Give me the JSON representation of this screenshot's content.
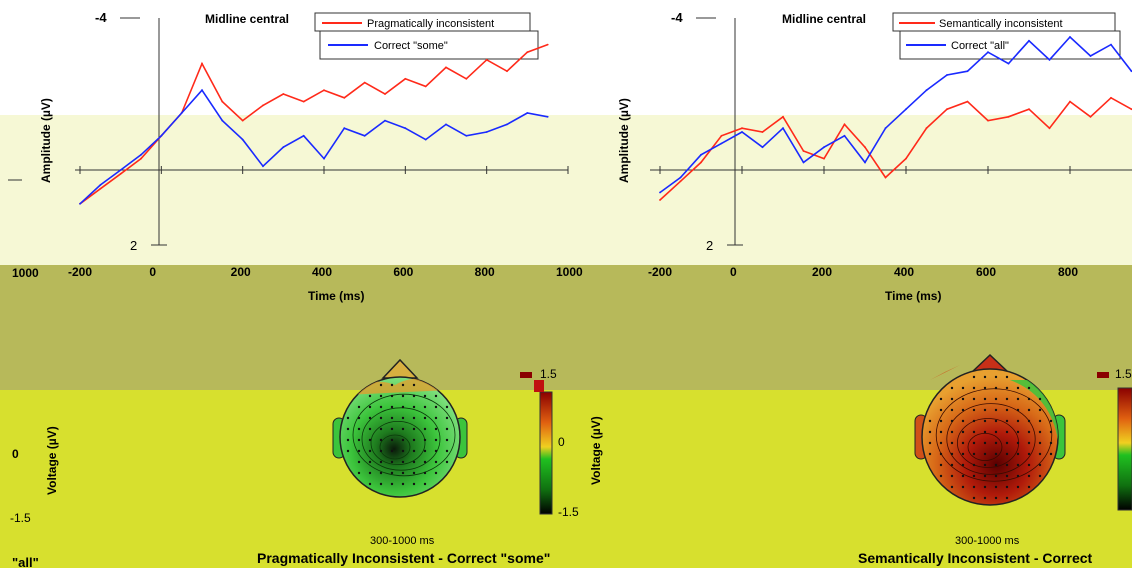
{
  "colors": {
    "red_series": "#ff2a1a",
    "blue_series": "#1a2aff",
    "band_light": "#f3f7d8",
    "band_cream": "#fbf8c8",
    "band_olive": "#b7b95a",
    "band_yellow": "#d7e02e",
    "axis": "#333333"
  },
  "erp_panels": [
    {
      "title": "Midline central",
      "ylabel": "Amplitude (µV)",
      "xlabel": "Time (ms)",
      "y_top_tick": "-4",
      "y_bottom_tick": "2",
      "x_ticks": [
        "-200",
        "0",
        "200",
        "400",
        "600",
        "800",
        "1000"
      ],
      "legend": [
        "Pragmatically inconsistent",
        "Correct \"some\""
      ]
    },
    {
      "title": "Midline central",
      "ylabel": "Amplitude (µV)",
      "xlabel": "Time (ms)",
      "y_top_tick": "-4",
      "y_bottom_tick": "2",
      "x_ticks": [
        "-200",
        "0",
        "200",
        "400",
        "600",
        "800"
      ],
      "legend": [
        "Semantically inconsistent",
        "Correct \"all\""
      ]
    }
  ],
  "chart_data": [
    {
      "type": "line",
      "title": "Midline central",
      "xlabel": "Time (ms)",
      "ylabel": "Amplitude (µV)",
      "xlim": [
        -200,
        1000
      ],
      "ylim": [
        2,
        -4
      ],
      "grid": false,
      "legend_position": "top-right",
      "series": [
        {
          "name": "Pragmatically inconsistent",
          "color": "#ff2a1a",
          "x": [
            -200,
            -150,
            -100,
            -50,
            0,
            50,
            100,
            150,
            200,
            250,
            300,
            350,
            400,
            450,
            500,
            550,
            600,
            650,
            700,
            750,
            800,
            850,
            900,
            950
          ],
          "y": [
            0.9,
            0.5,
            0.1,
            -0.3,
            -0.9,
            -1.5,
            -2.8,
            -1.8,
            -1.3,
            -1.7,
            -2.0,
            -1.8,
            -2.1,
            -1.9,
            -2.3,
            -2.0,
            -2.4,
            -2.2,
            -2.7,
            -2.4,
            -2.9,
            -2.6,
            -3.1,
            -3.3
          ]
        },
        {
          "name": "Correct \"some\"",
          "color": "#1a2aff",
          "x": [
            -200,
            -150,
            -100,
            -50,
            0,
            50,
            100,
            150,
            200,
            250,
            300,
            350,
            400,
            450,
            500,
            550,
            600,
            650,
            700,
            750,
            800,
            850,
            900,
            950
          ],
          "y": [
            0.9,
            0.4,
            0.0,
            -0.4,
            -0.9,
            -1.5,
            -2.1,
            -1.3,
            -0.8,
            -0.1,
            -0.6,
            -0.9,
            -0.3,
            -1.1,
            -0.9,
            -1.3,
            -1.1,
            -0.8,
            -1.2,
            -0.9,
            -1.0,
            -1.2,
            -1.5,
            -1.4
          ]
        }
      ]
    },
    {
      "type": "line",
      "title": "Midline central",
      "xlabel": "Time (ms)",
      "ylabel": "Amplitude (µV)",
      "xlim": [
        -200,
        1000
      ],
      "ylim": [
        2,
        -4
      ],
      "grid": false,
      "legend_position": "top-right",
      "series": [
        {
          "name": "Semantically inconsistent",
          "color": "#ff2a1a",
          "x": [
            -200,
            -150,
            -100,
            -50,
            0,
            50,
            100,
            150,
            200,
            250,
            300,
            350,
            400,
            450,
            500,
            550,
            600,
            650,
            700,
            750,
            800,
            850,
            900,
            950
          ],
          "y": [
            0.8,
            0.3,
            -0.2,
            -0.9,
            -1.1,
            -1.0,
            -1.4,
            -0.5,
            -0.3,
            -1.2,
            -0.6,
            0.2,
            -0.3,
            -1.1,
            -1.6,
            -1.8,
            -1.3,
            -1.4,
            -1.6,
            -1.1,
            -1.8,
            -1.4,
            -1.9,
            -1.6
          ]
        },
        {
          "name": "Correct \"all\"",
          "color": "#1a2aff",
          "x": [
            -200,
            -150,
            -100,
            -50,
            0,
            50,
            100,
            150,
            200,
            250,
            300,
            350,
            400,
            450,
            500,
            550,
            600,
            650,
            700,
            750,
            800,
            850,
            900,
            950
          ],
          "y": [
            0.6,
            0.2,
            -0.4,
            -0.7,
            -1.0,
            -0.6,
            -1.1,
            -0.2,
            -0.6,
            -0.9,
            -0.2,
            -1.1,
            -1.6,
            -2.1,
            -2.5,
            -2.6,
            -3.1,
            -2.8,
            -3.4,
            -2.9,
            -3.5,
            -3.0,
            -3.3,
            -2.6
          ]
        }
      ]
    }
  ],
  "topo_panels": [
    {
      "ylabel": "Voltage (µV)",
      "time_window": "300-1000 ms",
      "caption": "Pragmatically Inconsistent - Correct \"some\"",
      "scale_top": "1.5",
      "scale_mid": "0",
      "scale_bottom": "-1.5",
      "map": "green"
    },
    {
      "ylabel": "Voltage (µV)",
      "time_window": "300-1000 ms",
      "caption": "Semantically Inconsistent - Correct",
      "scale_top": "1.5",
      "map": "red"
    }
  ],
  "fragments": {
    "top_left_tick": "1000",
    "left_voltage_zero": "0",
    "left_voltage_bottom": "-1.5",
    "left_voltage_label": "Voltage (µV)",
    "bottom_left_caption": "\"all\""
  }
}
